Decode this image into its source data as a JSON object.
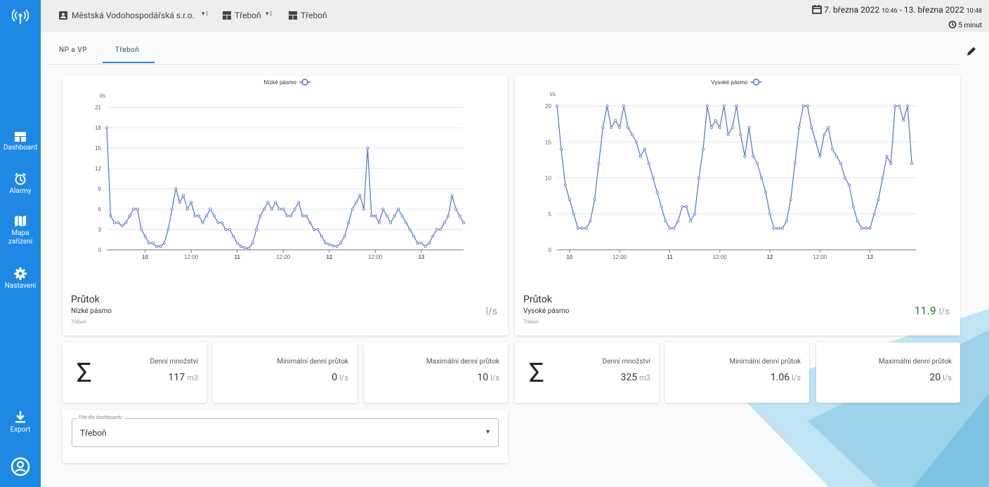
{
  "sidebar": {
    "items": [
      "Dashboard",
      "Alarmy",
      "Mapa zařízení",
      "Nastavení"
    ],
    "export": "Export"
  },
  "header": {
    "company": "Městská Vodohospodářská s.r.o.",
    "crumbs": [
      "Třeboň",
      "Třeboň"
    ],
    "range": {
      "from_date": "7. března 2022",
      "from_time": "10:46",
      "sep": "-",
      "to_date": "13. března 2022",
      "to_time": "10:48"
    },
    "refresh": "5 minut"
  },
  "tabs": [
    "NP a VP",
    "Třeboň"
  ],
  "chart_data": [
    {
      "type": "line",
      "y_label": "l/s",
      "grid": true,
      "x": [
        -10,
        -9,
        -8,
        -7,
        -6,
        -5,
        -4,
        -3,
        -2,
        -1,
        0,
        1,
        2,
        3,
        4,
        5,
        6,
        7,
        8,
        9,
        10,
        11,
        12,
        13,
        14,
        15,
        16,
        17,
        18,
        19,
        20,
        21,
        22,
        23,
        24,
        25,
        26,
        27,
        28,
        29,
        30,
        31,
        32,
        33,
        34,
        35,
        36,
        37,
        38,
        39,
        40,
        41,
        42,
        43,
        44,
        45,
        46,
        47,
        48,
        49,
        50,
        51,
        52,
        53,
        54,
        55,
        56,
        57,
        58,
        59,
        60,
        61,
        62,
        63,
        64,
        65,
        66,
        67,
        68,
        69,
        70,
        71,
        72,
        73,
        74,
        75,
        76,
        77,
        78,
        79,
        80,
        81,
        82,
        83
      ],
      "xlim": [
        -10,
        83
      ],
      "xticks": [
        {
          "value": 0,
          "label": "10"
        },
        {
          "value": 12,
          "label": "12:00"
        },
        {
          "value": 24,
          "label": "11"
        },
        {
          "value": 36,
          "label": "12:00"
        },
        {
          "value": 48,
          "label": "12"
        },
        {
          "value": 60,
          "label": "12:00"
        },
        {
          "value": 72,
          "label": "13"
        }
      ],
      "ylim": [
        0,
        21
      ],
      "yticks": [
        0,
        3,
        6,
        9,
        12,
        15,
        18,
        21
      ],
      "series": [
        {
          "name": "Nízké pásmo",
          "color": "#5470c6",
          "values": [
            18,
            5,
            4,
            4,
            3.5,
            4,
            5,
            6,
            6,
            3,
            2,
            1,
            1,
            0.5,
            0.5,
            1,
            3,
            6,
            9,
            7,
            8,
            6,
            7,
            5,
            5,
            4,
            5,
            6,
            5,
            4,
            4,
            3,
            3,
            2,
            1,
            0.5,
            0.3,
            0.2,
            1,
            3,
            5,
            6,
            7,
            6,
            7,
            6,
            6,
            5,
            5,
            6,
            7,
            5,
            5,
            4,
            3,
            3,
            2,
            1,
            0.8,
            0.6,
            0.5,
            1,
            2,
            4,
            6,
            7,
            8,
            6,
            15,
            5,
            5,
            4,
            6,
            5,
            4,
            5,
            6,
            5,
            4,
            3,
            2,
            1,
            1,
            0.5,
            1,
            2,
            3,
            3,
            4,
            5,
            8,
            6,
            5,
            4
          ]
        }
      ]
    },
    {
      "type": "line",
      "y_label": "l/s",
      "grid": true,
      "x": [
        -3,
        -2,
        -1,
        0,
        1,
        2,
        3,
        4,
        5,
        6,
        7,
        8,
        9,
        10,
        11,
        12,
        13,
        14,
        15,
        16,
        17,
        18,
        19,
        20,
        21,
        22,
        23,
        24,
        25,
        26,
        27,
        28,
        29,
        30,
        31,
        32,
        33,
        34,
        35,
        36,
        37,
        38,
        39,
        40,
        41,
        42,
        43,
        44,
        45,
        46,
        47,
        48,
        49,
        50,
        51,
        52,
        53,
        54,
        55,
        56,
        57,
        58,
        59,
        60,
        61,
        62,
        63,
        64,
        65,
        66,
        67,
        68,
        69,
        70,
        71,
        72,
        73,
        74,
        75,
        76,
        77,
        78,
        79,
        80,
        81,
        82
      ],
      "xlim": [
        -3,
        83
      ],
      "xticks": [
        {
          "value": 0,
          "label": "10"
        },
        {
          "value": 12,
          "label": "12:00"
        },
        {
          "value": 24,
          "label": "11"
        },
        {
          "value": 36,
          "label": "12:00"
        },
        {
          "value": 48,
          "label": "12"
        },
        {
          "value": 60,
          "label": "12:00"
        },
        {
          "value": 72,
          "label": "13"
        }
      ],
      "ylim": [
        0,
        20
      ],
      "yticks": [
        0,
        5,
        10,
        15,
        20
      ],
      "series": [
        {
          "name": "Vysoké pásmo",
          "color": "#5470c6",
          "values": [
            20,
            14,
            9,
            7,
            5,
            3,
            3,
            3,
            4,
            7,
            12,
            17,
            20,
            17,
            18,
            17,
            20,
            17,
            16,
            15,
            13,
            14,
            12,
            10,
            8,
            6,
            4,
            3,
            3,
            4,
            6,
            6,
            4,
            5,
            10,
            14,
            20,
            17,
            18,
            17,
            20,
            16,
            17,
            20,
            16,
            13,
            17,
            13,
            12,
            10,
            8,
            5,
            3,
            3,
            3,
            4,
            7,
            12,
            17,
            20,
            20,
            17,
            15,
            13,
            16,
            17,
            14,
            13,
            12,
            10,
            9,
            6,
            4,
            3,
            3,
            3,
            5,
            7,
            10,
            13,
            12,
            20,
            20,
            18,
            20,
            12
          ]
        }
      ]
    }
  ],
  "panels": [
    {
      "title": "Průtok",
      "subtitle": "Nízké pásmo",
      "location": "Třeboň",
      "unit": "l/s"
    },
    {
      "title": "Průtok",
      "subtitle": "Vysoké pásmo",
      "location": "Třeboň",
      "value": "11.9",
      "unit": "l/s"
    }
  ],
  "stats": [
    {
      "symbol": "Σ",
      "items": [
        {
          "label": "Denní množství",
          "value": 117,
          "unit": "m3"
        },
        {
          "label": "Minimální denní průtok",
          "value": 0,
          "unit": "l/s"
        },
        {
          "label": "Maximální denní průtok",
          "value": 10,
          "unit": "l/s"
        }
      ]
    },
    {
      "symbol": "Σ",
      "items": [
        {
          "label": "Denní množství",
          "value": 325,
          "unit": "m3"
        },
        {
          "label": "Minimální denní průtok",
          "value": 1.06,
          "unit": "l/s"
        },
        {
          "label": "Maximální denní průtok",
          "value": 20,
          "unit": "l/s"
        }
      ]
    }
  ],
  "filter": {
    "label": "Filtr dle dashboardu",
    "value": "Třeboň"
  }
}
